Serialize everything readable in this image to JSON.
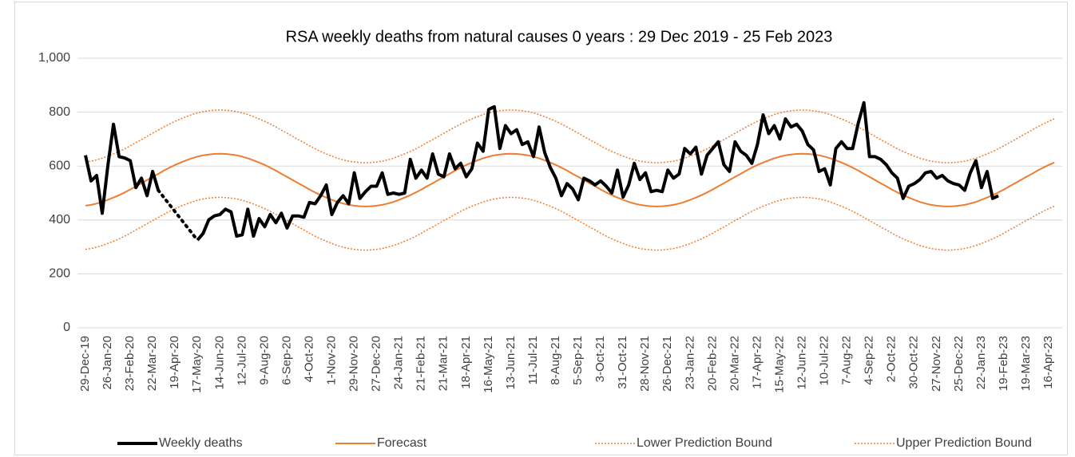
{
  "chart_data": {
    "type": "line",
    "title": "RSA weekly deaths from natural causes 0 years : 29 Dec 2019 - 25 Feb 2023",
    "categories": [
      "29-Dec-19",
      null,
      null,
      null,
      "26-Jan-20",
      null,
      null,
      null,
      "23-Feb-20",
      null,
      null,
      null,
      "22-Mar-20",
      null,
      null,
      null,
      "19-Apr-20",
      null,
      null,
      null,
      "17-May-20",
      null,
      null,
      null,
      "14-Jun-20",
      null,
      null,
      null,
      "12-Jul-20",
      null,
      null,
      null,
      "9-Aug-20",
      null,
      null,
      null,
      "6-Sep-20",
      null,
      null,
      null,
      "4-Oct-20",
      null,
      null,
      null,
      "1-Nov-20",
      null,
      null,
      null,
      "29-Nov-20",
      null,
      null,
      null,
      "27-Dec-20",
      null,
      null,
      null,
      "24-Jan-21",
      null,
      null,
      null,
      "21-Feb-21",
      null,
      null,
      null,
      "21-Mar-21",
      null,
      null,
      null,
      "18-Apr-21",
      null,
      null,
      null,
      "16-May-21",
      null,
      null,
      null,
      "13-Jun-21",
      null,
      null,
      null,
      "11-Jul-21",
      null,
      null,
      null,
      "8-Aug-21",
      null,
      null,
      null,
      "5-Sep-21",
      null,
      null,
      null,
      "3-Oct-21",
      null,
      null,
      null,
      "31-Oct-21",
      null,
      null,
      null,
      "28-Nov-21",
      null,
      null,
      null,
      "26-Dec-21",
      null,
      null,
      null,
      "23-Jan-22",
      null,
      null,
      null,
      "20-Feb-22",
      null,
      null,
      null,
      "20-Mar-22",
      null,
      null,
      null,
      "17-Apr-22",
      null,
      null,
      null,
      "15-May-22",
      null,
      null,
      null,
      "12-Jun-22",
      null,
      null,
      null,
      "10-Jul-22",
      null,
      null,
      null,
      "7-Aug-22",
      null,
      null,
      null,
      "4-Sep-22",
      null,
      null,
      null,
      "2-Oct-22",
      null,
      null,
      null,
      "30-Oct-22",
      null,
      null,
      null,
      "27-Nov-22",
      null,
      null,
      null,
      "25-Dec-22",
      null,
      null,
      null,
      "22-Jan-23",
      null,
      null,
      null,
      "19-Feb-23",
      null,
      null,
      null,
      "19-Mar-23",
      null,
      null,
      null,
      "16-Apr-23",
      null
    ],
    "series": [
      {
        "name": "Weekly deaths",
        "color": "#000000",
        "line_width": 4,
        "line_style": "solid",
        "gap_style": "dotted",
        "values": [
          640,
          545,
          565,
          425,
          600,
          755,
          635,
          630,
          620,
          520,
          555,
          490,
          580,
          510,
          null,
          null,
          null,
          null,
          null,
          null,
          325,
          350,
          400,
          415,
          420,
          440,
          430,
          340,
          345,
          440,
          340,
          405,
          375,
          420,
          390,
          425,
          370,
          415,
          415,
          410,
          465,
          460,
          490,
          530,
          420,
          465,
          490,
          460,
          575,
          480,
          505,
          525,
          525,
          575,
          495,
          500,
          495,
          500,
          625,
          555,
          585,
          555,
          645,
          570,
          560,
          645,
          590,
          610,
          560,
          590,
          685,
          655,
          810,
          820,
          665,
          750,
          720,
          735,
          680,
          690,
          635,
          745,
          650,
          595,
          555,
          490,
          535,
          515,
          475,
          555,
          545,
          530,
          545,
          525,
          500,
          585,
          485,
          530,
          610,
          550,
          575,
          505,
          510,
          505,
          585,
          555,
          570,
          665,
          645,
          670,
          570,
          640,
          665,
          690,
          605,
          580,
          690,
          655,
          640,
          610,
          680,
          790,
          720,
          750,
          700,
          775,
          745,
          755,
          730,
          680,
          660,
          580,
          590,
          530,
          665,
          690,
          665,
          665,
          760,
          835,
          635,
          635,
          625,
          605,
          575,
          555,
          480,
          525,
          535,
          550,
          575,
          580,
          555,
          565,
          545,
          535,
          530,
          510,
          575,
          620,
          520,
          580,
          480,
          490,
          null,
          null,
          null,
          null,
          null,
          null,
          null,
          null,
          null,
          null
        ]
      },
      {
        "name": "Forecast",
        "color": "#ed7d31",
        "line_width": 2,
        "line_style": "solid",
        "values": [
          453,
          456,
          461,
          467,
          475,
          483,
          492,
          502,
          513,
          525,
          536,
          548,
          560,
          571,
          583,
          594,
          604,
          613,
          621,
          629,
          635,
          640,
          643,
          645,
          646,
          645,
          643,
          640,
          635,
          629,
          621,
          613,
          604,
          594,
          583,
          571,
          560,
          548,
          536,
          525,
          513,
          502,
          492,
          483,
          475,
          467,
          461,
          456,
          453,
          451,
          450,
          451,
          453,
          456,
          461,
          467,
          475,
          483,
          492,
          502,
          513,
          525,
          536,
          548,
          560,
          571,
          583,
          594,
          604,
          613,
          621,
          629,
          635,
          640,
          643,
          645,
          646,
          645,
          643,
          640,
          635,
          629,
          621,
          613,
          604,
          594,
          583,
          571,
          560,
          548,
          536,
          525,
          513,
          502,
          492,
          483,
          475,
          467,
          461,
          456,
          453,
          451,
          450,
          451,
          453,
          456,
          461,
          467,
          475,
          483,
          492,
          502,
          513,
          525,
          536,
          548,
          560,
          571,
          583,
          594,
          604,
          613,
          621,
          629,
          635,
          640,
          643,
          645,
          646,
          645,
          643,
          640,
          635,
          629,
          621,
          613,
          604,
          594,
          583,
          571,
          560,
          548,
          536,
          525,
          513,
          502,
          492,
          483,
          475,
          467,
          461,
          456,
          453,
          451,
          450,
          451,
          453,
          456,
          461,
          467,
          475,
          483,
          492,
          502,
          513,
          525,
          536,
          548,
          560,
          571,
          583,
          594,
          604,
          613
        ]
      },
      {
        "name": "Lower Prediction Bound",
        "color": "#ed7d31",
        "line_width": 1.5,
        "line_style": "dotted",
        "values": [
          291,
          294,
          299,
          305,
          313,
          321,
          330,
          340,
          351,
          363,
          374,
          386,
          398,
          409,
          421,
          432,
          442,
          451,
          459,
          467,
          473,
          478,
          481,
          483,
          484,
          483,
          481,
          478,
          473,
          467,
          459,
          451,
          442,
          432,
          421,
          409,
          398,
          386,
          374,
          363,
          351,
          340,
          330,
          321,
          313,
          305,
          299,
          294,
          291,
          289,
          288,
          289,
          291,
          294,
          299,
          305,
          313,
          321,
          330,
          340,
          351,
          363,
          374,
          386,
          398,
          409,
          421,
          432,
          442,
          451,
          459,
          467,
          473,
          478,
          481,
          483,
          484,
          483,
          481,
          478,
          473,
          467,
          459,
          451,
          442,
          432,
          421,
          409,
          398,
          386,
          374,
          363,
          351,
          340,
          330,
          321,
          313,
          305,
          299,
          294,
          291,
          289,
          288,
          289,
          291,
          294,
          299,
          305,
          313,
          321,
          330,
          340,
          351,
          363,
          374,
          386,
          398,
          409,
          421,
          432,
          442,
          451,
          459,
          467,
          473,
          478,
          481,
          483,
          484,
          483,
          481,
          478,
          473,
          467,
          459,
          451,
          442,
          432,
          421,
          409,
          398,
          386,
          374,
          363,
          351,
          340,
          330,
          321,
          313,
          305,
          299,
          294,
          291,
          289,
          288,
          289,
          291,
          294,
          299,
          305,
          313,
          321,
          330,
          340,
          351,
          363,
          374,
          386,
          398,
          409,
          421,
          432,
          442,
          451
        ]
      },
      {
        "name": "Upper Prediction Bound",
        "color": "#ed7d31",
        "line_width": 1.5,
        "line_style": "dotted",
        "values": [
          615,
          618,
          623,
          629,
          637,
          645,
          654,
          664,
          675,
          687,
          698,
          710,
          722,
          733,
          745,
          756,
          766,
          775,
          783,
          791,
          797,
          802,
          805,
          807,
          808,
          807,
          805,
          802,
          797,
          791,
          783,
          775,
          766,
          756,
          745,
          733,
          722,
          710,
          698,
          687,
          675,
          664,
          654,
          645,
          637,
          629,
          623,
          618,
          615,
          613,
          612,
          613,
          615,
          618,
          623,
          629,
          637,
          645,
          654,
          664,
          675,
          687,
          698,
          710,
          722,
          733,
          745,
          756,
          766,
          775,
          783,
          791,
          797,
          802,
          805,
          807,
          808,
          807,
          805,
          802,
          797,
          791,
          783,
          775,
          766,
          756,
          745,
          733,
          722,
          710,
          698,
          687,
          675,
          664,
          654,
          645,
          637,
          629,
          623,
          618,
          615,
          613,
          612,
          613,
          615,
          618,
          623,
          629,
          637,
          645,
          654,
          664,
          675,
          687,
          698,
          710,
          722,
          733,
          745,
          756,
          766,
          775,
          783,
          791,
          797,
          802,
          805,
          807,
          808,
          807,
          805,
          802,
          797,
          791,
          783,
          775,
          766,
          756,
          745,
          733,
          722,
          710,
          698,
          687,
          675,
          664,
          654,
          645,
          637,
          629,
          623,
          618,
          615,
          613,
          612,
          613,
          615,
          618,
          623,
          629,
          637,
          645,
          654,
          664,
          675,
          687,
          698,
          710,
          722,
          733,
          745,
          756,
          766,
          775
        ]
      }
    ],
    "ylim": [
      0,
      1000
    ],
    "yticks": [
      0,
      200,
      400,
      600,
      800,
      {
        "value": 1000,
        "label": "1,000"
      }
    ],
    "grid": true,
    "legend": "bottom"
  }
}
